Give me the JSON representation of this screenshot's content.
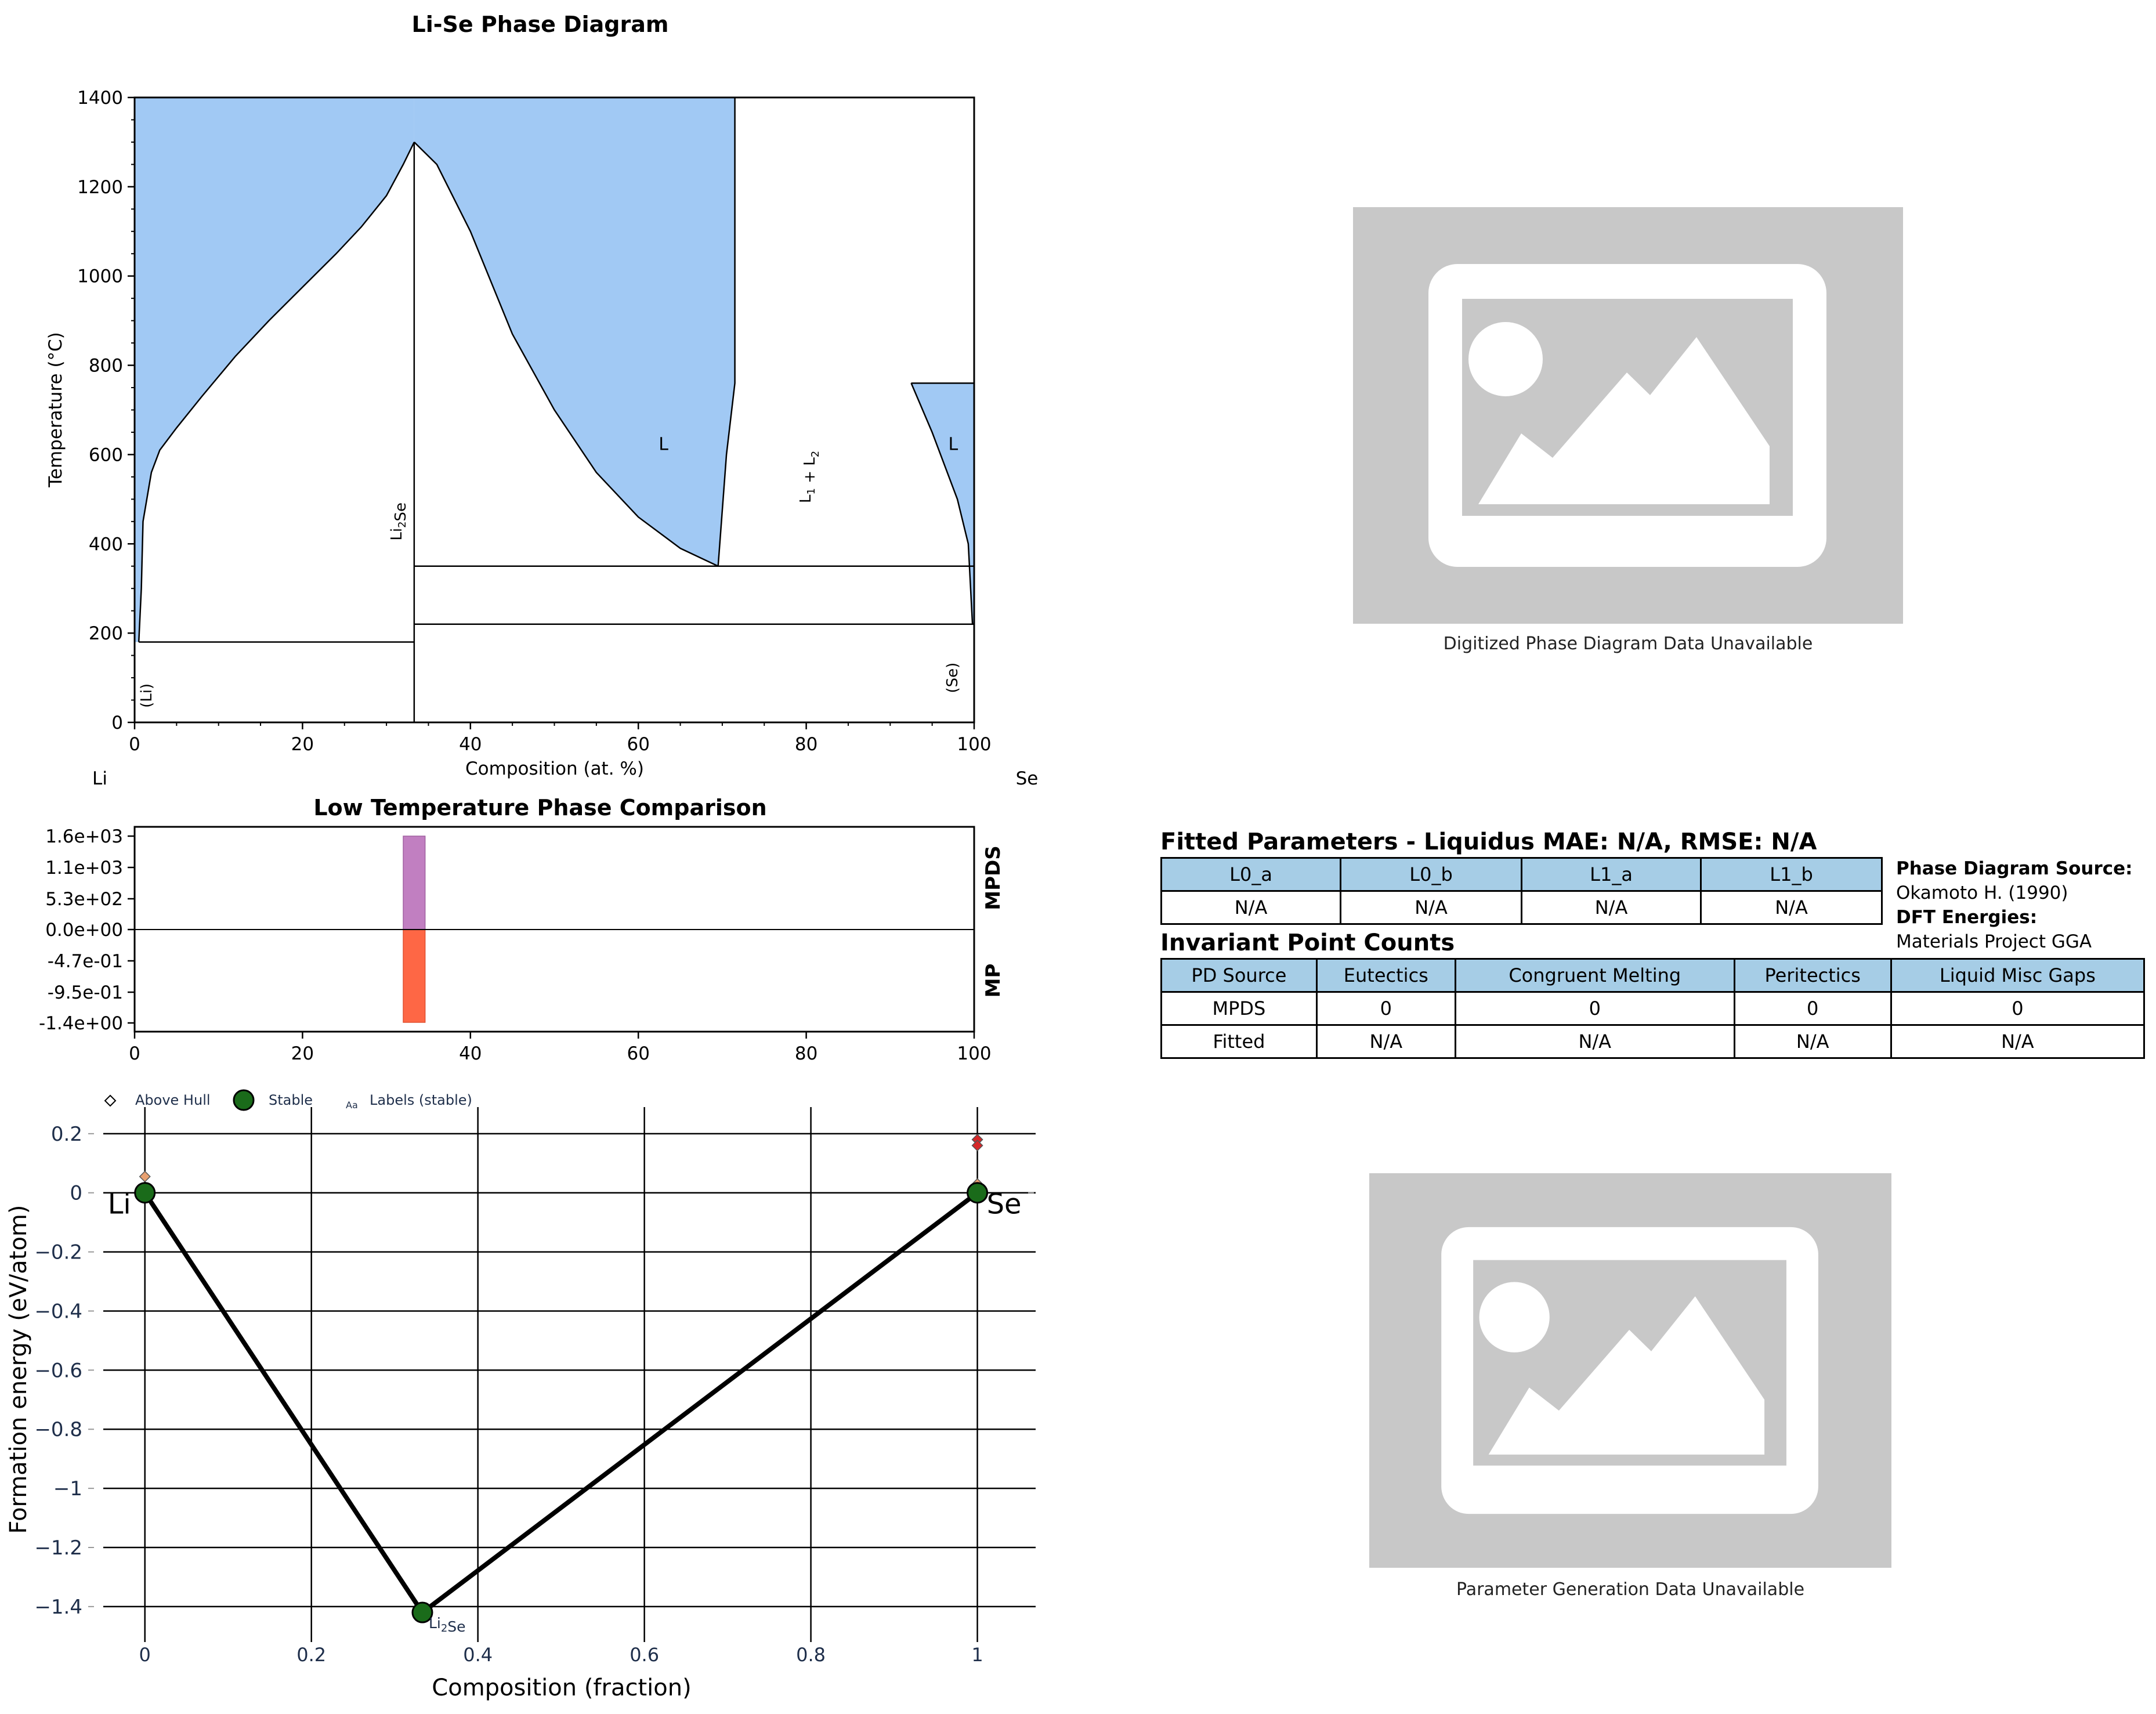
{
  "colors": {
    "liquid_fill": "#a1c9f4",
    "mpds_bar": "#c17fc1",
    "mp_bar": "#fe6745",
    "stable_point": "#1a6b1a",
    "above_hull": "#e8a070",
    "above_hull_red": "#d62728",
    "table_header": "#a6cde6",
    "placeholder": "#c8c8c8"
  },
  "icons": {
    "placeholder_top": "image-placeholder-icon",
    "placeholder_bottom": "image-placeholder-icon"
  },
  "chart_data": [
    {
      "type": "area",
      "title": "Li-Se Phase Diagram",
      "xlabel": "Composition (at. %)",
      "ylabel": "Temperature (°C)",
      "xlim": [
        0,
        100
      ],
      "ylim": [
        0,
        1400
      ],
      "xticks": [
        "0",
        "20",
        "40",
        "60",
        "80",
        "100"
      ],
      "yticks": [
        "0",
        "200",
        "400",
        "600",
        "800",
        "1000",
        "1200",
        "1400"
      ],
      "endpoints": {
        "left": "Li",
        "right": "Se"
      },
      "compound": {
        "name": "Li2Se",
        "x": 33.3
      },
      "liquidus_left": [
        [
          0.5,
          180
        ],
        [
          0.8,
          300
        ],
        [
          1,
          450
        ],
        [
          2,
          560
        ],
        [
          3,
          610
        ],
        [
          5,
          660
        ],
        [
          8,
          730
        ],
        [
          12,
          820
        ],
        [
          16,
          900
        ],
        [
          20,
          975
        ],
        [
          24,
          1050
        ],
        [
          27,
          1110
        ],
        [
          30,
          1180
        ],
        [
          32,
          1250
        ],
        [
          33.3,
          1300
        ]
      ],
      "liquidus_mid": [
        [
          33.3,
          1300
        ],
        [
          36,
          1250
        ],
        [
          40,
          1100
        ],
        [
          45,
          870
        ],
        [
          50,
          700
        ],
        [
          55,
          560
        ],
        [
          60,
          460
        ],
        [
          65,
          390
        ],
        [
          69.5,
          350
        ]
      ],
      "miscibility_edge": [
        [
          71.5,
          1400
        ],
        [
          71.5,
          760
        ],
        [
          70.5,
          600
        ],
        [
          69.5,
          350
        ]
      ],
      "liquidus_right": [
        [
          92.5,
          760
        ],
        [
          95,
          650
        ],
        [
          98,
          500
        ],
        [
          99.3,
          400
        ],
        [
          99.8,
          220
        ]
      ],
      "isotherms": [
        {
          "x": [
            0.5,
            33.3
          ],
          "y": 180
        },
        {
          "x": [
            33.3,
            100
          ],
          "y": 350
        },
        {
          "x": [
            33.3,
            100
          ],
          "y": 220
        },
        {
          "x": [
            92.5,
            100
          ],
          "y": 760
        }
      ],
      "region_labels": [
        {
          "text": "L",
          "x": 63,
          "y": 610
        },
        {
          "text": "L1 + L2",
          "x": 80.5,
          "y": 550
        },
        {
          "text": "L",
          "x": 97.5,
          "y": 610
        },
        {
          "text": "Li2Se",
          "x": 31.8,
          "y": 450
        },
        {
          "text": "(Li)",
          "x": 2,
          "y": 60
        },
        {
          "text": "(Se)",
          "x": 98,
          "y": 100
        }
      ]
    },
    {
      "type": "bar",
      "title": "Low Temperature Phase Comparison",
      "xlim": [
        0,
        100
      ],
      "xticks": [
        "0",
        "20",
        "40",
        "60",
        "80",
        "100"
      ],
      "yticks": [
        "1.6e+03",
        "1.1e+03",
        "5.3e+02",
        "0.0e+00",
        "-4.7e-01",
        "-9.5e-01",
        "-1.4e+00"
      ],
      "row_labels": [
        "MPDS",
        "MP"
      ],
      "series": [
        {
          "name": "MPDS",
          "x": 33.3,
          "value": 1600
        },
        {
          "name": "MP",
          "x": 33.3,
          "value": -1.4
        }
      ]
    },
    {
      "type": "scatter",
      "xlabel": "Composition (fraction)",
      "ylabel": "Formation energy (eV/atom)",
      "xlim": [
        -0.05,
        1.07
      ],
      "ylim": [
        -1.52,
        0.29
      ],
      "xticks": [
        "0",
        "0.2",
        "0.4",
        "0.6",
        "0.8",
        "1"
      ],
      "yticks": [
        "0.2",
        "0",
        "−0.2",
        "−0.4",
        "−0.6",
        "−0.8",
        "−1",
        "−1.2",
        "−1.4"
      ],
      "legend": [
        "Above Hull",
        "Stable",
        "Labels (stable)"
      ],
      "legend_marker_text": "Aa",
      "hull": [
        [
          0,
          0
        ],
        [
          0.3333,
          -1.42
        ],
        [
          1,
          0
        ]
      ],
      "stable": [
        {
          "x": 0,
          "y": 0,
          "label": "Li"
        },
        {
          "x": 0.3333,
          "y": -1.42,
          "label": "Li2Se"
        },
        {
          "x": 1,
          "y": 0,
          "label": "Se"
        }
      ],
      "above_hull": [
        {
          "x": 0,
          "y": 0.055
        },
        {
          "x": 0,
          "y": 0.01
        },
        {
          "x": 1,
          "y": 0.18
        },
        {
          "x": 1,
          "y": 0.16
        },
        {
          "x": 1,
          "y": 0.03
        },
        {
          "x": 1,
          "y": 0.005
        }
      ]
    }
  ],
  "placeholders": {
    "top_caption": "Digitized Phase Diagram Data Unavailable",
    "bottom_caption": "Parameter Generation Data Unavailable"
  },
  "fitted": {
    "title": "Fitted Parameters - Liquidus MAE: N/A, RMSE: N/A",
    "headers": [
      "L0_a",
      "L0_b",
      "L1_a",
      "L1_b"
    ],
    "values": [
      "N/A",
      "N/A",
      "N/A",
      "N/A"
    ]
  },
  "source": {
    "pd_label": "Phase Diagram Source:",
    "pd_value": "Okamoto H. (1990)",
    "dft_label": "DFT Energies:",
    "dft_value": "Materials Project GGA"
  },
  "invariant": {
    "title": "Invariant Point Counts",
    "headers": [
      "PD Source",
      "Eutectics",
      "Congruent Melting",
      "Peritectics",
      "Liquid Misc Gaps"
    ],
    "rows": [
      [
        "MPDS",
        "0",
        "0",
        "0",
        "0"
      ],
      [
        "Fitted",
        "N/A",
        "N/A",
        "N/A",
        "N/A"
      ]
    ]
  }
}
